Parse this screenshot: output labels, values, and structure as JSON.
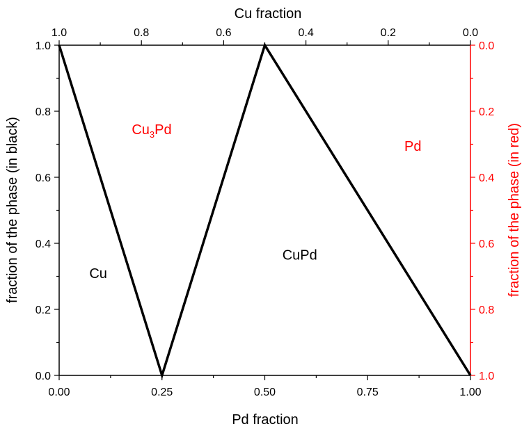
{
  "chart_data": {
    "type": "line",
    "xlabel": "Pd fraction",
    "xlabel_top": "Cu fraction",
    "ylabel": "fraction of the phase (in black)",
    "ylabel_right": "fraction of the phase (in red)",
    "xlim": [
      0.0,
      1.0
    ],
    "ylim": [
      0.0,
      1.0
    ],
    "xlim_top": [
      1.0,
      0.0
    ],
    "ylim_right": [
      1.0,
      0.0
    ],
    "x_ticks": [
      "0.00",
      "0.25",
      "0.50",
      "0.75",
      "1.00"
    ],
    "x_ticks_top": [
      "1.0",
      "0.8",
      "0.6",
      "0.4",
      "0.2",
      "0.0"
    ],
    "y_ticks": [
      "0.0",
      "0.2",
      "0.4",
      "0.6",
      "0.8",
      "1.0"
    ],
    "y_ticks_right": [
      "0.0",
      "0.2",
      "0.4",
      "0.6",
      "0.8",
      "1.0"
    ],
    "series": [
      {
        "color": "#000000",
        "x": [
          0.0,
          0.25,
          0.5,
          1.0
        ],
        "y": [
          1.0,
          0.0,
          1.0,
          0.0
        ]
      }
    ],
    "annotations": [
      {
        "text": "Cu",
        "x": 0.095,
        "y": 0.31,
        "color": "#000000"
      },
      {
        "text": "Cu",
        "sub": "3",
        "tail": "Pd",
        "x": 0.225,
        "y": 0.745,
        "color": "#ff0000"
      },
      {
        "text": "CuPd",
        "x": 0.585,
        "y": 0.365,
        "color": "#000000"
      },
      {
        "text": "Pd",
        "x": 0.86,
        "y": 0.695,
        "color": "#ff0000"
      }
    ],
    "colors": {
      "left_axis": "#000000",
      "right_axis": "#ff0000"
    },
    "grid": false,
    "legend": "none"
  }
}
